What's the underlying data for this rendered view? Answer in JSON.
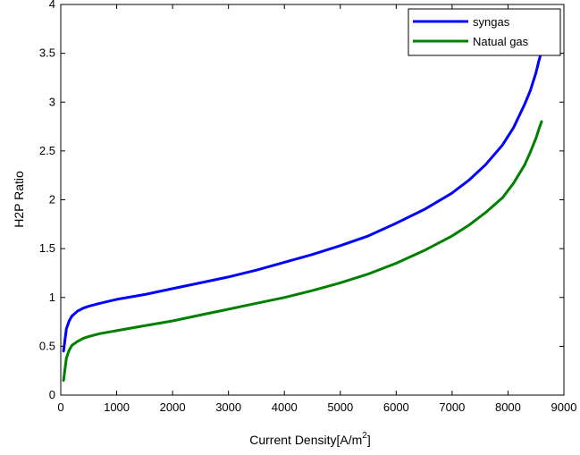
{
  "chart_data": {
    "type": "line",
    "title": "",
    "xlabel": "Current Density[A/m",
    "xlabel_sup": "2",
    "xlabel_close": "]",
    "ylabel": "H2P Ratio",
    "xlim": [
      0,
      9000
    ],
    "ylim": [
      0,
      4
    ],
    "xticks": [
      0,
      1000,
      2000,
      3000,
      4000,
      5000,
      6000,
      7000,
      8000,
      9000
    ],
    "yticks": [
      0,
      0.5,
      1,
      1.5,
      2,
      2.5,
      3,
      3.5,
      4
    ],
    "xtick_labels": [
      "0",
      "1000",
      "2000",
      "3000",
      "4000",
      "5000",
      "6000",
      "7000",
      "8000",
      "9000"
    ],
    "ytick_labels": [
      "0",
      "0.5",
      "1",
      "1.5",
      "2",
      "2.5",
      "3",
      "3.5",
      "4"
    ],
    "grid": false,
    "legend_position": "top-right",
    "series": [
      {
        "name": "syngas",
        "color": "#0000ff",
        "x": [
          50,
          100,
          150,
          200,
          300,
          400,
          500,
          700,
          1000,
          1500,
          2000,
          2500,
          3000,
          3500,
          4000,
          4500,
          5000,
          5500,
          6000,
          6500,
          7000,
          7300,
          7600,
          7900,
          8100,
          8300,
          8400,
          8500,
          8550,
          8600
        ],
        "y": [
          0.45,
          0.68,
          0.76,
          0.81,
          0.86,
          0.89,
          0.91,
          0.94,
          0.98,
          1.03,
          1.09,
          1.15,
          1.21,
          1.28,
          1.36,
          1.44,
          1.53,
          1.63,
          1.76,
          1.9,
          2.07,
          2.2,
          2.36,
          2.56,
          2.74,
          2.98,
          3.12,
          3.3,
          3.42,
          3.52
        ]
      },
      {
        "name": "Natual gas",
        "color": "#008000",
        "x": [
          50,
          100,
          150,
          200,
          300,
          400,
          500,
          700,
          1000,
          1500,
          2000,
          2500,
          3000,
          3500,
          4000,
          4500,
          5000,
          5500,
          6000,
          6500,
          7000,
          7300,
          7600,
          7900,
          8100,
          8300,
          8400,
          8500,
          8550,
          8600
        ],
        "y": [
          0.15,
          0.38,
          0.46,
          0.51,
          0.55,
          0.58,
          0.6,
          0.63,
          0.66,
          0.71,
          0.76,
          0.82,
          0.88,
          0.94,
          1.0,
          1.07,
          1.15,
          1.24,
          1.35,
          1.48,
          1.63,
          1.74,
          1.87,
          2.02,
          2.17,
          2.36,
          2.49,
          2.63,
          2.72,
          2.8
        ]
      }
    ]
  }
}
